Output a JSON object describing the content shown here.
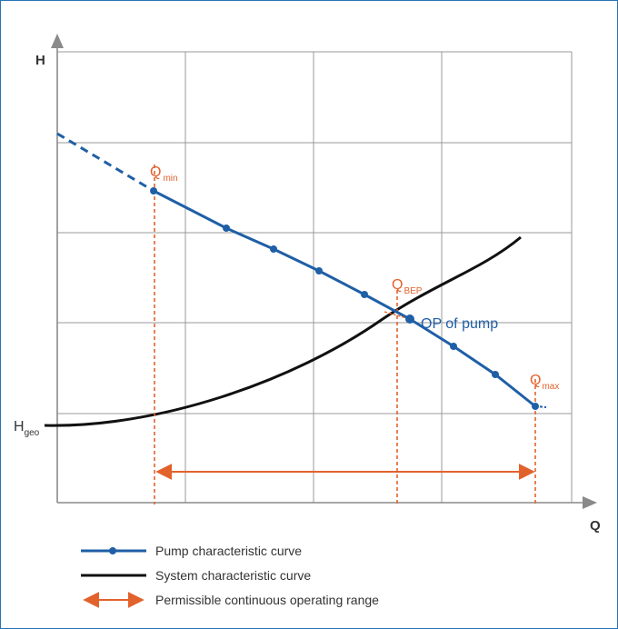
{
  "colors": {
    "frame": "#2a73b5",
    "grid": "#9a9a9a",
    "axis": "#8a8a8a",
    "pump": "#1f5fa6",
    "system": "#111111",
    "accent": "#e2622c"
  },
  "axes": {
    "y_label": "H",
    "x_label": "Q"
  },
  "annotations": {
    "h_geo": {
      "main": "H",
      "sub": "geo"
    },
    "q_min": {
      "main": "Q",
      "sub": "min"
    },
    "q_bep": {
      "main": "Q",
      "sub": "BEP"
    },
    "q_max": {
      "main": "Q",
      "sub": "max"
    },
    "op": "OP of pump"
  },
  "legend": {
    "pump": "Pump characteristic curve",
    "system": "System characteristic curve",
    "range": "Permissible continuous operating range"
  },
  "icons": {
    "x_arrow": "arrow-right-icon",
    "y_arrow": "arrow-up-icon"
  }
}
